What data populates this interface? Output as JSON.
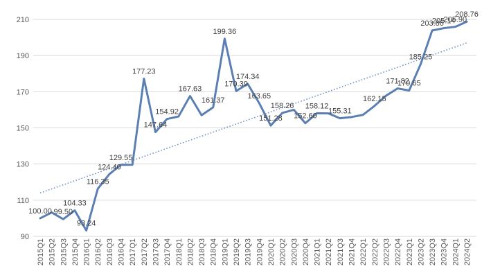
{
  "chart_data": {
    "type": "line",
    "title": "",
    "xlabel": "",
    "ylabel": "",
    "ylim": [
      90,
      215
    ],
    "yticks": [
      90,
      110,
      130,
      150,
      170,
      190,
      210
    ],
    "grid": "horizontal",
    "legend": "none",
    "colors": {
      "line": "#5b7fb3",
      "trend": "#6f95c6",
      "grid": "#d9d9d9",
      "text": "#595959"
    },
    "categories": [
      "2015Q1",
      "2015Q2",
      "2015Q3",
      "2015Q4",
      "2016Q1",
      "2016Q2",
      "2016Q3",
      "2016Q4",
      "2017Q1",
      "2017Q2",
      "2017Q3",
      "2017Q4",
      "2018Q1",
      "2018Q2",
      "2018Q3",
      "2018Q4",
      "2019Q1",
      "2019Q2",
      "2019Q3",
      "2019Q4",
      "2020Q1",
      "2020Q2",
      "2020Q3",
      "2020Q4",
      "2021Q1",
      "2021Q2",
      "2021Q3",
      "2021Q4",
      "2022Q1",
      "2022Q2",
      "2022Q3",
      "2022Q4",
      "2023Q1",
      "2023Q2",
      "2023Q3",
      "2023Q4",
      "2024Q1",
      "2024Q2"
    ],
    "series": [
      {
        "values": [
          100.0,
          103.2,
          99.5,
          104.33,
          93.24,
          116.35,
          124.4,
          129.55,
          129.6,
          177.23,
          147.64,
          154.92,
          156.3,
          167.63,
          157.0,
          161.37,
          199.36,
          170.39,
          174.34,
          163.65,
          151.28,
          158.26,
          160.0,
          152.6,
          158.12,
          158.0,
          155.31,
          156.0,
          157.2,
          162.15,
          167.8,
          171.82,
          170.65,
          185.25,
          203.86,
          205.14,
          205.9,
          208.76
        ]
      }
    ],
    "trendline": {
      "type": "linear",
      "style": "dotted",
      "start": 114,
      "end": 197
    },
    "data_labels": [
      {
        "i": 0,
        "text": "100.00"
      },
      {
        "i": 2,
        "text": "99.50"
      },
      {
        "i": 3,
        "text": "104.33"
      },
      {
        "i": 4,
        "text": "93.24"
      },
      {
        "i": 5,
        "text": "116.35"
      },
      {
        "i": 6,
        "text": "124.40"
      },
      {
        "i": 7,
        "text": "129.55"
      },
      {
        "i": 9,
        "text": "177.23"
      },
      {
        "i": 10,
        "text": "147.64"
      },
      {
        "i": 11,
        "text": "154.92"
      },
      {
        "i": 13,
        "text": "167.63"
      },
      {
        "i": 15,
        "text": "161.37"
      },
      {
        "i": 16,
        "text": "199.36"
      },
      {
        "i": 17,
        "text": "170.39"
      },
      {
        "i": 18,
        "text": "174.34"
      },
      {
        "i": 19,
        "text": "163.65"
      },
      {
        "i": 20,
        "text": "151.28"
      },
      {
        "i": 21,
        "text": "158.26"
      },
      {
        "i": 23,
        "text": "152.60"
      },
      {
        "i": 24,
        "text": "158.12"
      },
      {
        "i": 26,
        "text": "155.31"
      },
      {
        "i": 29,
        "text": "162.15"
      },
      {
        "i": 31,
        "text": "171.82"
      },
      {
        "i": 32,
        "text": "170.65"
      },
      {
        "i": 33,
        "text": "185.25"
      },
      {
        "i": 34,
        "text": "203.86"
      },
      {
        "i": 35,
        "text": "205.14"
      },
      {
        "i": 36,
        "text": "205.90"
      },
      {
        "i": 37,
        "text": "208.76"
      }
    ]
  }
}
